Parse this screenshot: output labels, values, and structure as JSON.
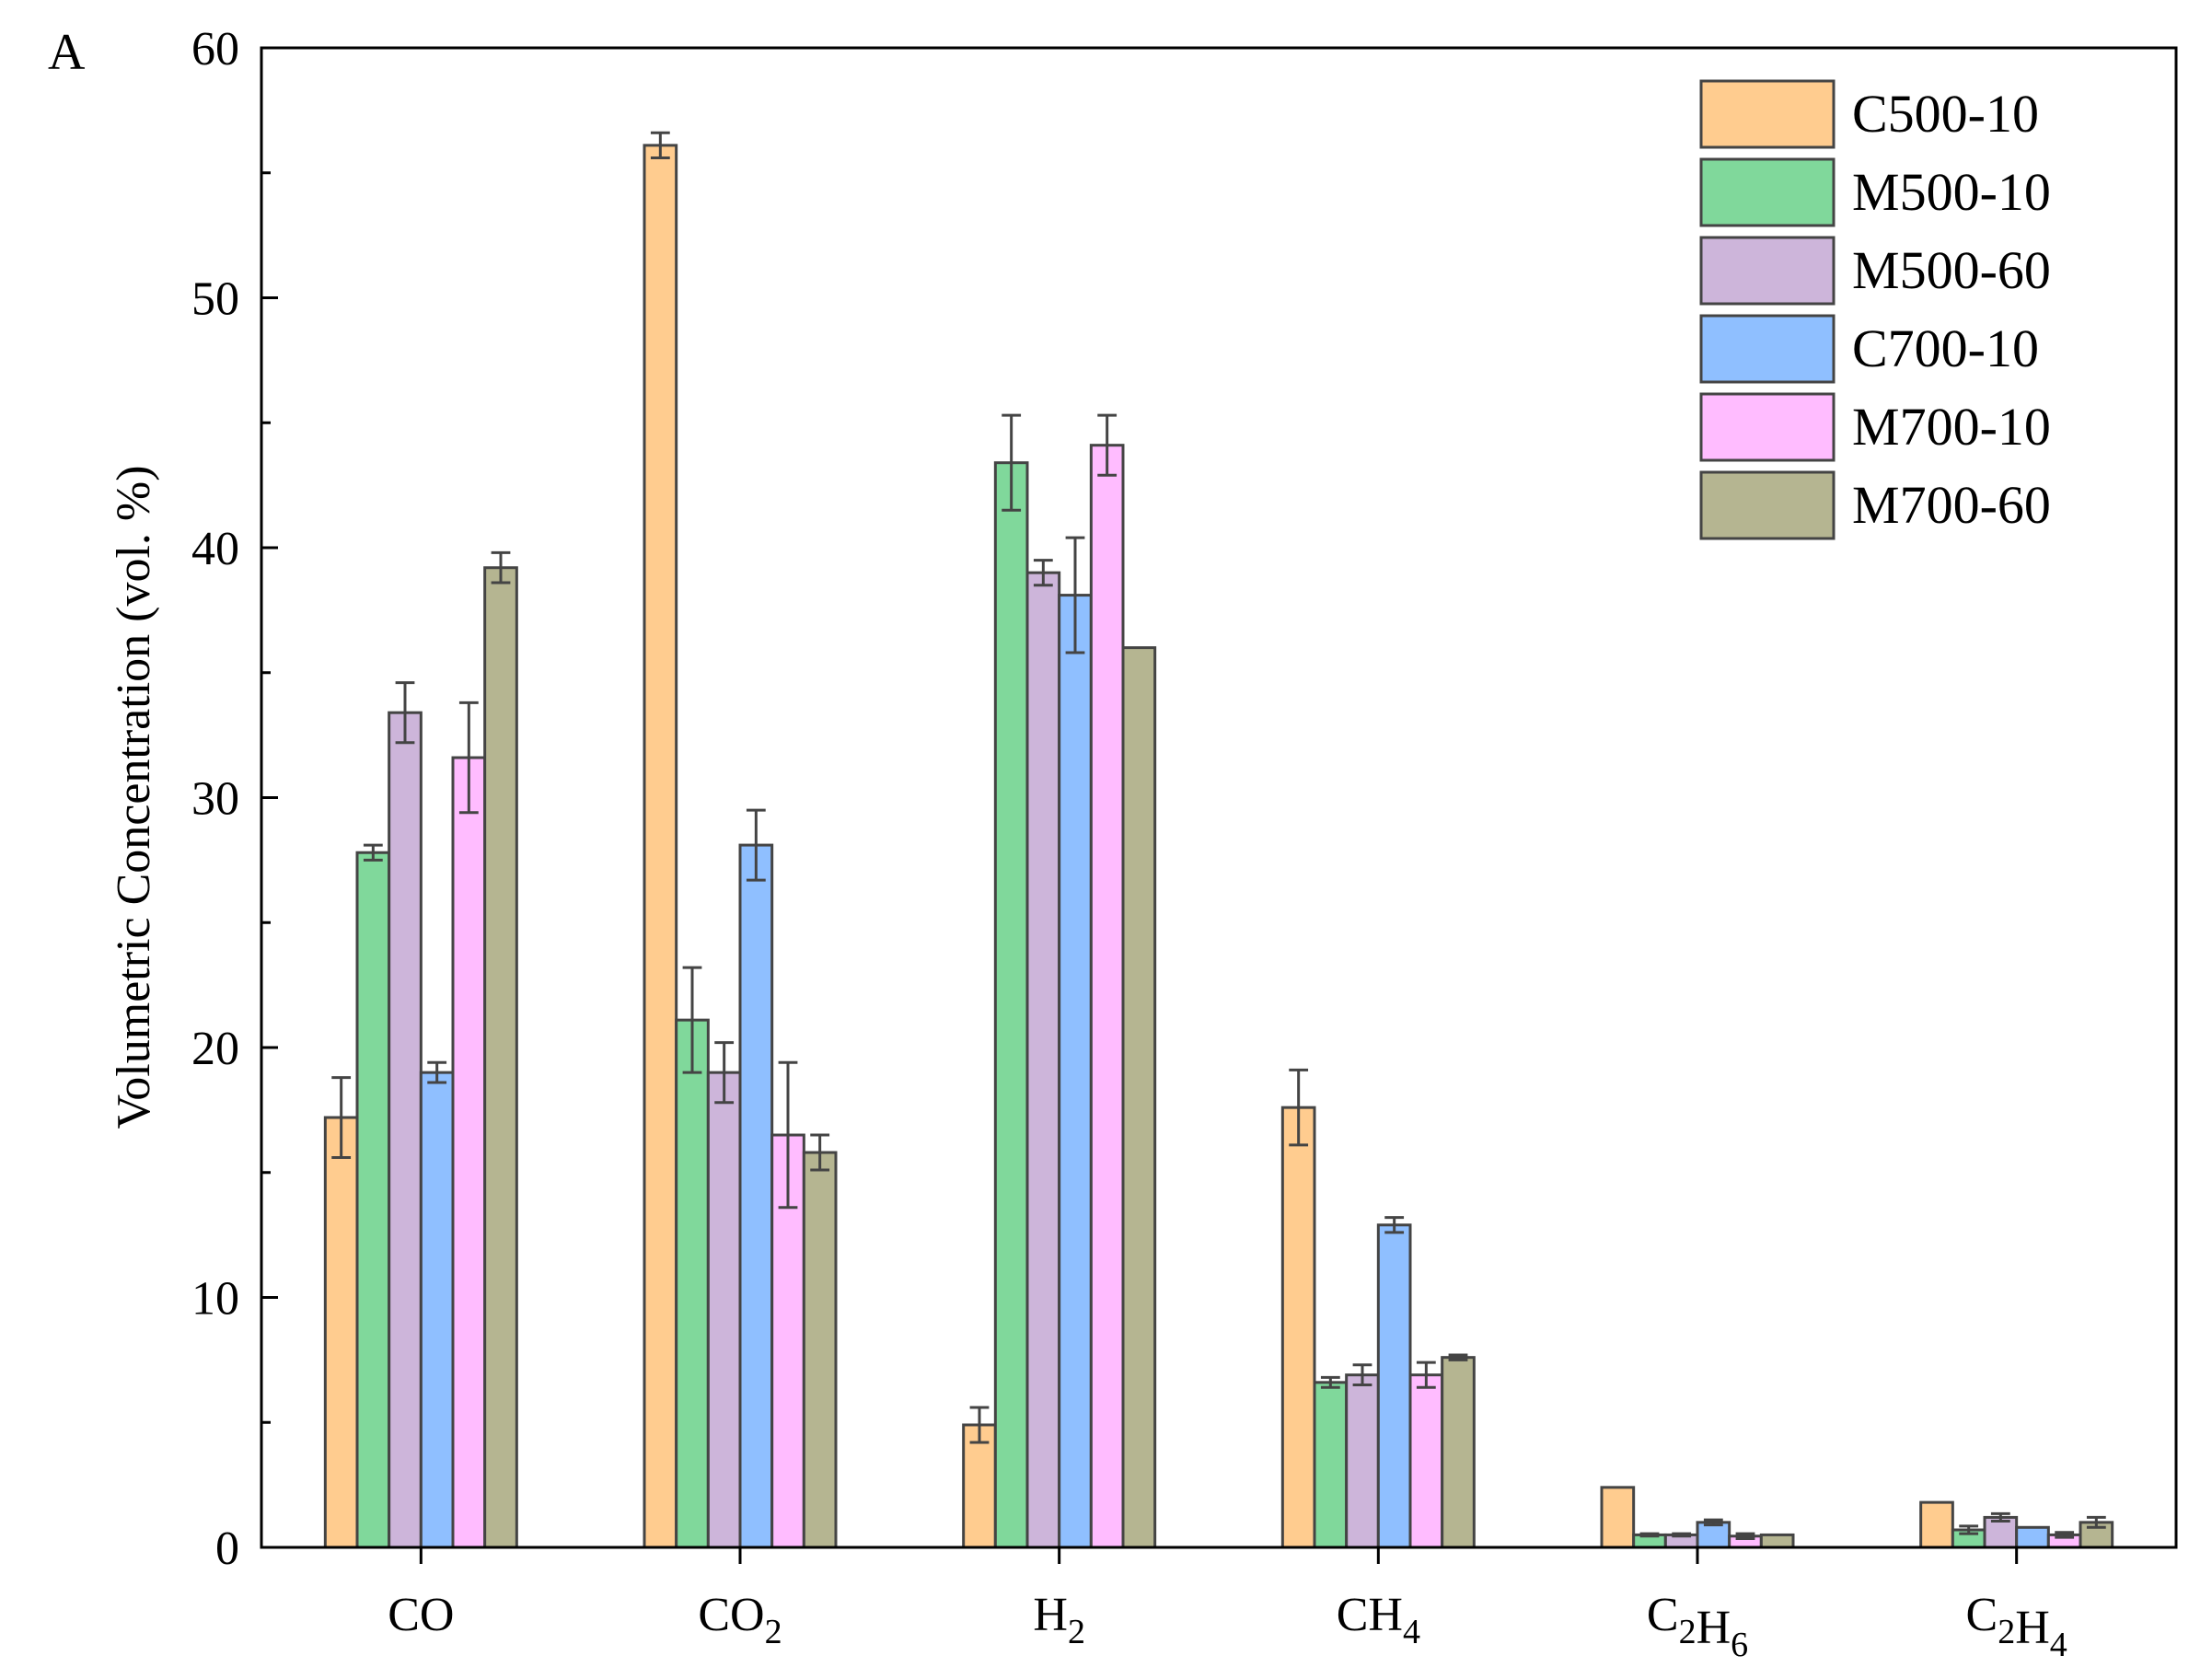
{
  "panel_label": "A",
  "chart_data": {
    "type": "bar",
    "title": "",
    "xlabel": "",
    "ylabel": "Volumetric Concentration (vol. %)",
    "ylim": [
      0,
      60
    ],
    "yticks": [
      0,
      10,
      20,
      30,
      40,
      50,
      60
    ],
    "yticks_text": [
      "0",
      "10",
      "20",
      "30",
      "40",
      "50",
      "60"
    ],
    "grid": false,
    "legend_position": "top-right",
    "categories": [
      {
        "base": "CO",
        "sub": ""
      },
      {
        "base": "CO",
        "sub": "2"
      },
      {
        "base": "H",
        "sub": "2"
      },
      {
        "base": "CH",
        "sub": "4"
      },
      {
        "base": "C2H6",
        "parts": [
          [
            "C",
            ""
          ],
          [
            "H",
            ""
          ]
        ],
        "sub": "6"
      },
      {
        "base": "C2H4",
        "sub": "4"
      }
    ],
    "category_text": [
      [
        [
          "CO",
          ""
        ]
      ],
      [
        [
          "CO",
          "2"
        ]
      ],
      [
        [
          "H",
          "2"
        ]
      ],
      [
        [
          "CH",
          "4"
        ]
      ],
      [
        [
          "C",
          "2"
        ],
        [
          "H",
          "6"
        ]
      ],
      [
        [
          "C",
          "2"
        ],
        [
          "H",
          "4"
        ]
      ]
    ],
    "series": [
      {
        "name": "C500-10",
        "color": "#FFCC8F",
        "values": [
          17.2,
          56.1,
          4.9,
          17.6,
          2.4,
          1.8
        ],
        "errors": [
          1.6,
          0.5,
          0.7,
          1.5,
          0.0,
          0.0
        ]
      },
      {
        "name": "M500-10",
        "color": "#80D89B",
        "values": [
          27.8,
          21.1,
          43.4,
          6.6,
          0.5,
          0.7
        ],
        "errors": [
          0.3,
          2.1,
          1.9,
          0.2,
          0.05,
          0.15
        ]
      },
      {
        "name": "M500-60",
        "color": "#CDB5DA",
        "values": [
          33.4,
          19.0,
          39.0,
          6.9,
          0.5,
          1.2
        ],
        "errors": [
          1.2,
          1.2,
          0.5,
          0.4,
          0.05,
          0.15
        ]
      },
      {
        "name": "C700-10",
        "color": "#8FBFFF",
        "values": [
          19.0,
          28.1,
          38.1,
          12.9,
          1.0,
          0.8
        ],
        "errors": [
          0.4,
          1.4,
          2.3,
          0.3,
          0.1,
          0.0
        ]
      },
      {
        "name": "M700-10",
        "color": "#FFBCFF",
        "values": [
          31.6,
          16.5,
          44.1,
          6.9,
          0.45,
          0.5
        ],
        "errors": [
          2.2,
          2.9,
          1.2,
          0.5,
          0.1,
          0.1
        ]
      },
      {
        "name": "M700-60",
        "color": "#B5B591",
        "values": [
          39.2,
          15.8,
          36.0,
          7.6,
          0.5,
          1.0
        ],
        "errors": [
          0.6,
          0.7,
          0.0,
          0.1,
          0.0,
          0.2
        ]
      }
    ]
  }
}
